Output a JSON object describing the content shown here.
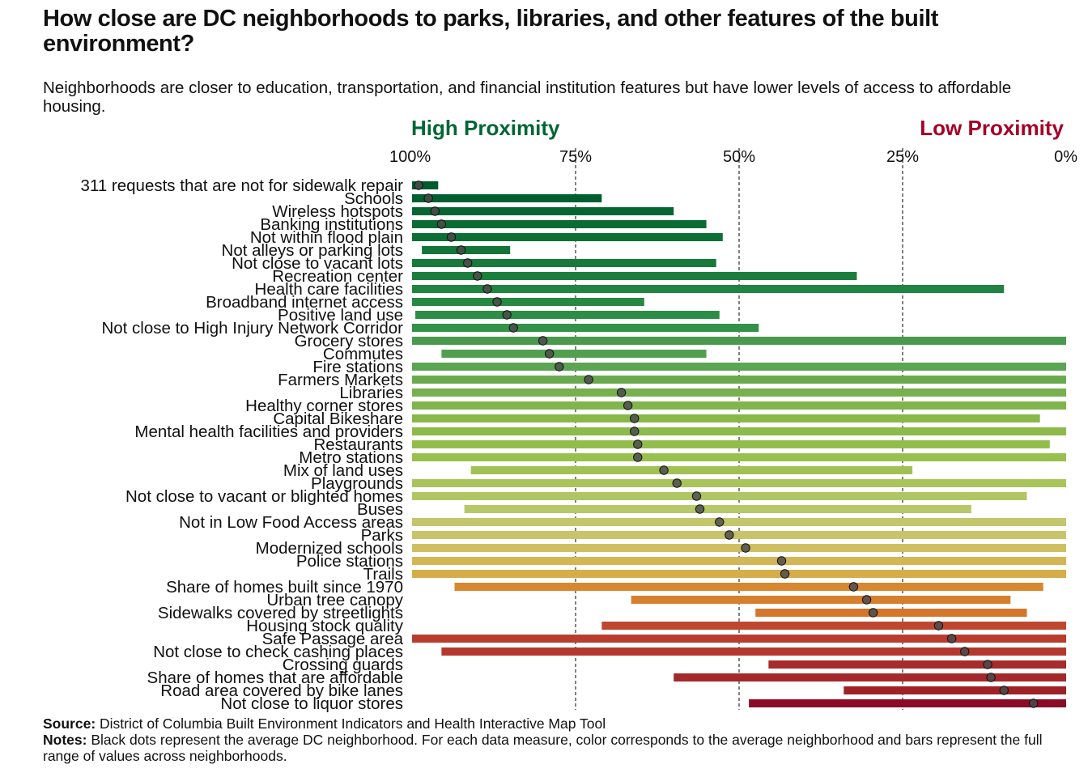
{
  "title": "How close are DC neighborhoods to parks, libraries, and other features of the built environment?",
  "subtitle": "Neighborhoods are closer to education, transportation, and financial institution features but have lower levels of access to affordable housing.",
  "legend": {
    "high_label": "High Proximity",
    "low_label": "Low Proximity",
    "high_color": "#006634",
    "low_color": "#a50026"
  },
  "chart_data": {
    "type": "bar",
    "orientation": "horizontal range (dot plot)",
    "x_axis": {
      "ticks": [
        100,
        75,
        50,
        25,
        0
      ],
      "tick_labels": [
        "100%",
        "75%",
        "50%",
        "25%",
        "0%"
      ],
      "xlim": [
        100,
        0
      ],
      "reversed": true,
      "gridlines": "dashed at 75%, 50%, 25%"
    },
    "measures": [
      {
        "name": "311 requests that are not for sidewalk repair",
        "min": 96,
        "max": 100,
        "avg": 99,
        "color": "#005a2e"
      },
      {
        "name": "Schools",
        "min": 71,
        "max": 100,
        "avg": 97.5,
        "color": "#005e30"
      },
      {
        "name": "Wireless hotspots",
        "min": 60,
        "max": 100,
        "avg": 96.5,
        "color": "#076532"
      },
      {
        "name": "Banking institutions",
        "min": 55,
        "max": 100,
        "avg": 95.5,
        "color": "#0b6b34"
      },
      {
        "name": "Not within flood plain",
        "min": 52.5,
        "max": 100,
        "avg": 94,
        "color": "#0e6f36"
      },
      {
        "name": "Not alleys or parking lots",
        "min": 85,
        "max": 98.5,
        "avg": 92.5,
        "color": "#137538"
      },
      {
        "name": "Not close to vacant lots",
        "min": 53.5,
        "max": 100,
        "avg": 91.5,
        "color": "#187a3a"
      },
      {
        "name": "Recreation center",
        "min": 32,
        "max": 100,
        "avg": 90,
        "color": "#1c7e3c"
      },
      {
        "name": "Health care facilities",
        "min": 9.5,
        "max": 100,
        "avg": 88.5,
        "color": "#218440"
      },
      {
        "name": "Broadband internet access",
        "min": 64.5,
        "max": 100,
        "avg": 87,
        "color": "#268843"
      },
      {
        "name": "Positive land use",
        "min": 53,
        "max": 99.5,
        "avg": 85.5,
        "color": "#2c8d46"
      },
      {
        "name": "Not close to High Injury Network Corridor",
        "min": 47,
        "max": 100,
        "avg": 84.5,
        "color": "#33924a"
      },
      {
        "name": "Grocery stores",
        "min": 0,
        "max": 100,
        "avg": 80,
        "color": "#4a9a4e"
      },
      {
        "name": "Commutes",
        "min": 55,
        "max": 95.5,
        "avg": 79,
        "color": "#539f50"
      },
      {
        "name": "Fire stations",
        "min": 0,
        "max": 100,
        "avg": 77.5,
        "color": "#5ca552"
      },
      {
        "name": "Farmers Markets",
        "min": 0,
        "max": 100,
        "avg": 73,
        "color": "#6aaa4f"
      },
      {
        "name": "Libraries",
        "min": 0,
        "max": 100,
        "avg": 68,
        "color": "#77b04d"
      },
      {
        "name": "Healthy corner stores",
        "min": 0,
        "max": 100,
        "avg": 67,
        "color": "#80b44c"
      },
      {
        "name": "Capital Bikeshare",
        "min": 4,
        "max": 100,
        "avg": 66,
        "color": "#88b84b"
      },
      {
        "name": "Mental health facilities and providers",
        "min": 0,
        "max": 100,
        "avg": 66,
        "color": "#8dba4b"
      },
      {
        "name": "Restaurants",
        "min": 2.5,
        "max": 100,
        "avg": 65.5,
        "color": "#93bd4b"
      },
      {
        "name": "Metro stations",
        "min": 0,
        "max": 100,
        "avg": 65.5,
        "color": "#98c04c"
      },
      {
        "name": "Mix of land uses",
        "min": 23.5,
        "max": 91,
        "avg": 61.5,
        "color": "#a2c154"
      },
      {
        "name": "Playgrounds",
        "min": 0,
        "max": 100,
        "avg": 59.5,
        "color": "#a9c45a"
      },
      {
        "name": "Not close to vacant or blighted homes",
        "min": 6,
        "max": 100,
        "avg": 56.5,
        "color": "#b0c662"
      },
      {
        "name": "Buses",
        "min": 14.5,
        "max": 92,
        "avg": 56,
        "color": "#b6c868"
      },
      {
        "name": "Not in Low Food Access areas",
        "min": 0,
        "max": 100,
        "avg": 53,
        "color": "#c4c66c"
      },
      {
        "name": "Parks",
        "min": 0,
        "max": 100,
        "avg": 51.5,
        "color": "#c9c46a"
      },
      {
        "name": "Modernized schools",
        "min": 0,
        "max": 100,
        "avg": 49,
        "color": "#cebf62"
      },
      {
        "name": "Police stations",
        "min": 0,
        "max": 100,
        "avg": 43.5,
        "color": "#d3b655"
      },
      {
        "name": "Trails",
        "min": 0,
        "max": 100,
        "avg": 43,
        "color": "#d6ad48"
      },
      {
        "name": "Share of homes built since 1970",
        "min": 3.5,
        "max": 93.5,
        "avg": 32.5,
        "color": "#d8872e"
      },
      {
        "name": "Urban tree canopy",
        "min": 8.5,
        "max": 66.5,
        "avg": 30.5,
        "color": "#d67f2d"
      },
      {
        "name": "Sidewalks covered by streetlights",
        "min": 6,
        "max": 47.5,
        "avg": 29.5,
        "color": "#d4762c"
      },
      {
        "name": "Housing stock quality",
        "min": 0,
        "max": 71,
        "avg": 19.5,
        "color": "#c0472f"
      },
      {
        "name": "Safe Passage area",
        "min": 0,
        "max": 100,
        "avg": 17.5,
        "color": "#b93c2f"
      },
      {
        "name": "Not close to check cashing places",
        "min": 0,
        "max": 95.5,
        "avg": 15.5,
        "color": "#b5382f"
      },
      {
        "name": "Crossing guards",
        "min": 0,
        "max": 45.5,
        "avg": 12,
        "color": "#a72b2a"
      },
      {
        "name": "Share of homes that are affordable",
        "min": 0,
        "max": 60,
        "avg": 11.5,
        "color": "#a3292a"
      },
      {
        "name": "Road area covered by bike lanes",
        "min": 0,
        "max": 34,
        "avg": 9.5,
        "color": "#9e2329"
      },
      {
        "name": "Not close to liquor stores",
        "min": 0,
        "max": 48.5,
        "avg": 5,
        "color": "#8c0a25"
      }
    ]
  },
  "footer": {
    "source_label": "Source:",
    "source_text": " District of Columbia Built Environment Indicators and Health Interactive Map Tool",
    "notes_label": "Notes:",
    "notes_text": " Black dots represent the average DC neighborhood. For each data measure, color corresponds to the average neighborhood and bars represent the full range of values across neighborhoods."
  }
}
